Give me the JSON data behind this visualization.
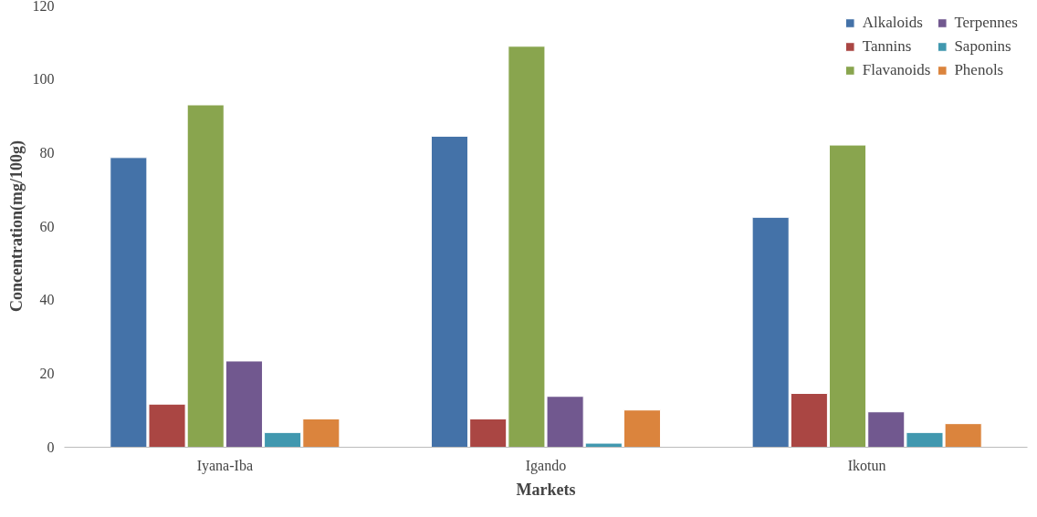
{
  "chart_data": {
    "type": "bar",
    "xlabel": "Markets",
    "ylabel": "Concentration(mg/100g)",
    "categories": [
      "Iyana-Iba",
      "Igando",
      "Ikotun"
    ],
    "series": [
      {
        "name": "Alkaloids",
        "color": "#4472a8",
        "values": [
          78.6,
          84.4,
          62.4
        ]
      },
      {
        "name": "Tannins",
        "color": "#aa4643",
        "values": [
          11.7,
          7.7,
          14.6
        ]
      },
      {
        "name": "Flavanoids",
        "color": "#89a54e",
        "values": [
          92.9,
          108.8,
          82.0
        ]
      },
      {
        "name": "Terpennes",
        "color": "#71588f",
        "values": [
          23.4,
          13.8,
          9.6
        ]
      },
      {
        "name": "Saponins",
        "color": "#4198af",
        "values": [
          4.0,
          1.1,
          4.0
        ]
      },
      {
        "name": "Phenols",
        "color": "#db843d",
        "values": [
          7.7,
          10.1,
          6.4
        ]
      }
    ],
    "ylim": [
      0,
      120
    ],
    "yticks": [
      0,
      20,
      40,
      60,
      80,
      100,
      120
    ],
    "grid": false,
    "legend": "top right"
  }
}
